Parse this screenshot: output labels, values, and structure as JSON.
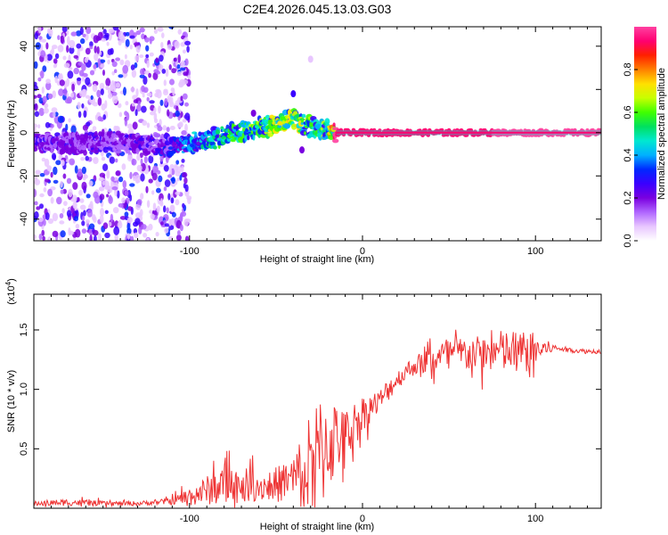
{
  "figure_title": "C2E4.2026.045.13.03.G03",
  "chart_data": [
    {
      "type": "heatmap",
      "id": "spectrogram",
      "title": "C2E4.2026.045.13.03.G03",
      "xlabel": "Height of straight line (km)",
      "ylabel": "Frequency (Hz)",
      "xlim": [
        -190,
        138
      ],
      "ylim": [
        -50,
        49
      ],
      "xticks": [
        -100,
        0,
        100
      ],
      "xtick_labels": [
        "-100",
        "0",
        "100"
      ],
      "yticks": [
        -40,
        -20,
        0,
        20,
        40
      ],
      "ytick_labels": [
        "-40",
        "-20",
        "0",
        "20",
        "40"
      ],
      "grid": false,
      "colorbar": {
        "label": "Normalized spectral amplitude",
        "range": [
          0,
          1
        ],
        "ticks": [
          0.0,
          0.2,
          0.4,
          0.6,
          0.8
        ],
        "tick_labels": [
          "0.0",
          "0.2",
          "0.4",
          "0.6",
          "0.8"
        ],
        "colors": [
          "#ffffff",
          "#e8c6ff",
          "#b066ff",
          "#7a00e0",
          "#3a00ff",
          "#0028ff",
          "#00b0ff",
          "#00e8d0",
          "#00e060",
          "#40ff00",
          "#c8ff00",
          "#ffe000",
          "#ff8000",
          "#ff2000",
          "#ff0070",
          "#ff40a0"
        ]
      },
      "ridge": {
        "x": [
          -190,
          -170,
          -150,
          -130,
          -115,
          -105,
          -95,
          -85,
          -75,
          -65,
          -55,
          -45,
          -40,
          -35,
          -30,
          -25,
          -20,
          -15,
          0,
          135
        ],
        "y": [
          -4,
          -5,
          -4,
          -5,
          -6,
          -6,
          -4,
          -2,
          0,
          1,
          3,
          5,
          6,
          4,
          3,
          2,
          1,
          0,
          0,
          0
        ],
        "amplitude": [
          0.2,
          0.2,
          0.2,
          0.2,
          0.25,
          0.3,
          0.4,
          0.45,
          0.5,
          0.5,
          0.55,
          0.6,
          0.6,
          0.55,
          0.5,
          0.5,
          0.6,
          0.9,
          0.95,
          0.98
        ]
      },
      "scatter_region": {
        "xlim": [
          -190,
          -100
        ],
        "ylim": [
          -50,
          49
        ],
        "amplitude": [
          0.05,
          0.35
        ]
      },
      "spikes": [
        {
          "x": -40,
          "y": 18,
          "amplitude": 0.25
        },
        {
          "x": -63,
          "y": 9,
          "amplitude": 0.2
        },
        {
          "x": -30,
          "y": 34,
          "amplitude": 0.05
        },
        {
          "x": -35,
          "y": -8,
          "amplitude": 0.2
        }
      ]
    },
    {
      "type": "line",
      "id": "snr",
      "xlabel": "Height of straight line (km)",
      "ylabel": "SNR (10 * v/v)",
      "y_multiplier": "(x10",
      "y_multiplier_exp": "4",
      "y_multiplier_close": ")",
      "xlim": [
        -190,
        138
      ],
      "ylim": [
        0,
        1.8
      ],
      "xticks": [
        -100,
        0,
        100
      ],
      "xtick_labels": [
        "-100",
        "0",
        "100"
      ],
      "yticks": [
        0.5,
        1.0,
        1.5
      ],
      "ytick_labels": [
        "0.5",
        "1.0",
        "1.5"
      ],
      "grid": false,
      "series": [
        {
          "name": "SNR",
          "color": "#ee3333",
          "x": [
            -190,
            -170,
            -150,
            -130,
            -120,
            -110,
            -100,
            -90,
            -80,
            -70,
            -60,
            -50,
            -40,
            -30,
            -25,
            -20,
            -15,
            -10,
            -5,
            0,
            5,
            10,
            15,
            20,
            25,
            30,
            40,
            50,
            60,
            70,
            80,
            90,
            100,
            110,
            120,
            130,
            138
          ],
          "values": [
            0.04,
            0.05,
            0.04,
            0.04,
            0.05,
            0.06,
            0.1,
            0.15,
            0.2,
            0.2,
            0.18,
            0.2,
            0.25,
            0.35,
            0.45,
            0.55,
            0.6,
            0.62,
            0.7,
            0.8,
            0.85,
            0.9,
            1.0,
            1.08,
            1.15,
            1.2,
            1.25,
            1.3,
            1.3,
            1.3,
            1.32,
            1.3,
            1.33,
            1.35,
            1.33,
            1.32,
            1.32
          ],
          "noise": [
            0.02,
            0.03,
            0.02,
            0.02,
            0.02,
            0.03,
            0.08,
            0.12,
            0.18,
            0.15,
            0.12,
            0.15,
            0.2,
            0.5,
            0.5,
            0.45,
            0.3,
            0.2,
            0.2,
            0.15,
            0.12,
            0.1,
            0.1,
            0.08,
            0.08,
            0.08,
            0.12,
            0.15,
            0.15,
            0.15,
            0.18,
            0.2,
            0.15,
            0.03,
            0.02,
            0.02,
            0.02
          ]
        }
      ]
    }
  ]
}
